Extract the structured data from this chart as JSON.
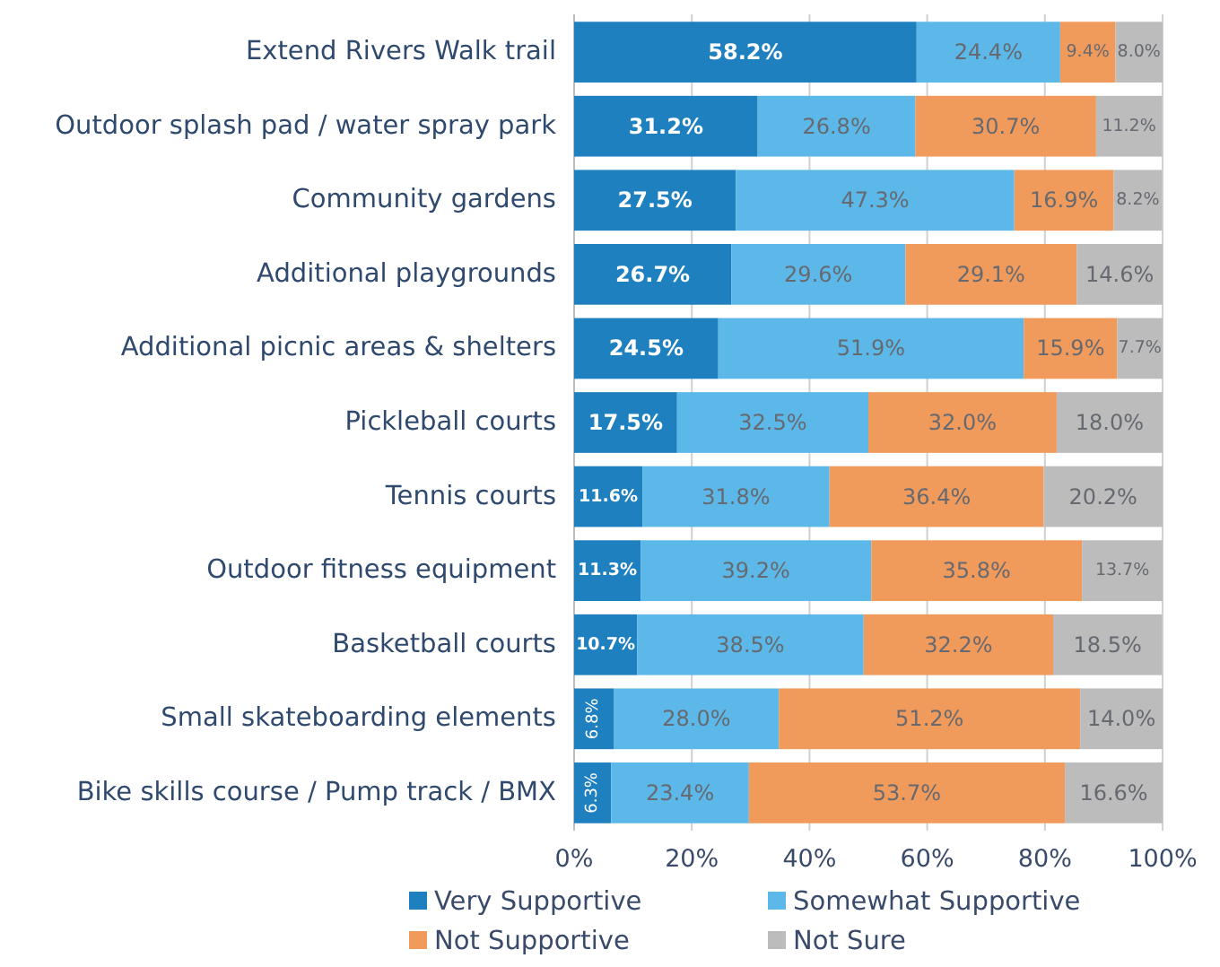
{
  "chart_data": {
    "type": "bar",
    "orientation": "horizontal",
    "stacked": true,
    "categories": [
      "Extend Rivers Walk trail",
      "Outdoor splash pad / water spray park",
      "Community gardens",
      "Additional playgrounds",
      "Additional picnic areas & shelters",
      "Pickleball courts",
      "Tennis courts",
      "Outdoor fitness equipment",
      "Basketball courts",
      "Small skateboarding elements",
      "Bike skills course / Pump track / BMX"
    ],
    "series": [
      {
        "name": "Very Supportive",
        "color": "#1f80c0",
        "values": [
          58.2,
          31.2,
          27.5,
          26.7,
          24.5,
          17.5,
          11.6,
          11.3,
          10.7,
          6.8,
          6.3
        ],
        "value_labels": [
          "58.2%",
          "31.2%",
          "27.5%",
          "26.7%",
          "24.5%",
          "17.5%",
          "11.6%",
          "11.3%",
          "10.7%",
          "6.8%",
          "6.3%"
        ]
      },
      {
        "name": "Somewhat Supportive",
        "color": "#5cb8e8",
        "values": [
          24.4,
          26.8,
          47.3,
          29.6,
          51.9,
          32.5,
          31.8,
          39.2,
          38.5,
          28.0,
          23.4
        ],
        "value_labels": [
          "24.4%",
          "26.8%",
          "47.3%",
          "29.6%",
          "51.9%",
          "32.5%",
          "31.8%",
          "39.2%",
          "38.5%",
          "28.0%",
          "23.4%"
        ]
      },
      {
        "name": "Not Supportive",
        "color": "#f09a5c",
        "values": [
          9.4,
          30.7,
          16.9,
          29.1,
          15.9,
          32.0,
          36.4,
          35.8,
          32.2,
          51.2,
          53.7
        ],
        "value_labels": [
          "9.4%",
          "30.7%",
          "16.9%",
          "29.1%",
          "15.9%",
          "32.0%",
          "36.4%",
          "35.8%",
          "32.2%",
          "51.2%",
          "53.7%"
        ]
      },
      {
        "name": "Not Sure",
        "color": "#bcbcbc",
        "values": [
          8.0,
          11.2,
          8.2,
          14.6,
          7.7,
          18.0,
          20.2,
          13.7,
          18.5,
          14.0,
          16.6
        ],
        "value_labels": [
          "8.0%",
          "11.2%",
          "8.2%",
          "14.6%",
          "7.7%",
          "18.0%",
          "20.2%",
          "13.7%",
          "18.5%",
          "14.0%",
          "16.6%"
        ]
      }
    ],
    "xlim": [
      0,
      100
    ],
    "xticks": [
      {
        "value": 0,
        "label": "0%"
      },
      {
        "value": 20,
        "label": "20%"
      },
      {
        "value": 40,
        "label": "40%"
      },
      {
        "value": 60,
        "label": "60%"
      },
      {
        "value": 80,
        "label": "80%"
      },
      {
        "value": 100,
        "label": "100%"
      }
    ],
    "grid": "x",
    "legend": "bottom"
  }
}
